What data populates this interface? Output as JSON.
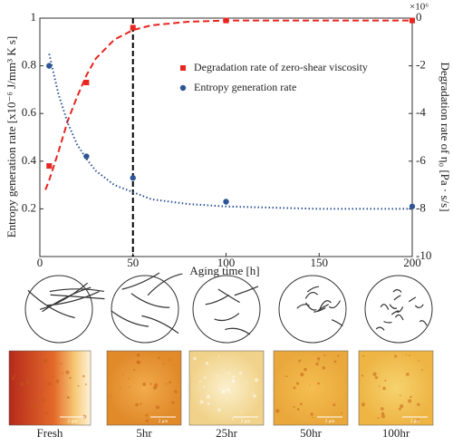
{
  "chart_data": {
    "type": "scatter",
    "xlabel": "Aging time [h]",
    "ylabel": "Entropy generation rate [x10⁻⁶ J/mm³ K s]",
    "y2label": "Degradation rate of η₀ [Pa · s/s]",
    "y2_multiplier": "×10⁶",
    "xlim": [
      0,
      200
    ],
    "xticks": [
      0,
      50,
      100,
      150,
      200
    ],
    "ylim": [
      0,
      1
    ],
    "yticks": [
      0.2,
      0.4,
      0.6,
      0.8,
      1
    ],
    "y2lim": [
      -10,
      0
    ],
    "y2ticks": [
      0,
      -2,
      -4,
      -6,
      -8,
      -10
    ],
    "vline": 50,
    "series": [
      {
        "name": "Degradation rate of zero-shear viscosity",
        "color": "#e8251f",
        "marker": "square",
        "axis": "y2",
        "x": [
          5,
          25,
          50,
          100,
          200
        ],
        "values": [
          -6.2,
          -2.7,
          -0.4,
          -0.1,
          -0.1
        ]
      },
      {
        "name": "Entropy generation rate",
        "color": "#2f5597",
        "marker": "circle",
        "x": [
          5,
          25,
          50,
          100,
          200
        ],
        "values": [
          0.8,
          0.42,
          0.33,
          0.23,
          0.21
        ]
      },
      {
        "color": "#e8251f",
        "style": "dashed",
        "axis": "y2",
        "x": [
          3,
          5,
          10,
          15,
          20,
          25,
          30,
          40,
          50,
          60,
          80,
          100,
          150,
          200
        ],
        "values": [
          -7.2,
          -6.8,
          -5.6,
          -4.3,
          -3.3,
          -2.4,
          -1.7,
          -0.9,
          -0.5,
          -0.3,
          -0.15,
          -0.1,
          -0.1,
          -0.1
        ]
      },
      {
        "color": "#2f5597",
        "style": "dotted",
        "x": [
          5,
          10,
          15,
          20,
          25,
          30,
          40,
          50,
          60,
          80,
          100,
          150,
          200
        ],
        "values": [
          0.85,
          0.68,
          0.56,
          0.47,
          0.41,
          0.36,
          0.3,
          0.27,
          0.24,
          0.22,
          0.21,
          0.2,
          0.2
        ]
      }
    ]
  },
  "panels": {
    "labels": [
      "Fresh",
      "5hr",
      "25hr",
      "50hr",
      "100hr"
    ],
    "scale_bar": "2 µm"
  }
}
